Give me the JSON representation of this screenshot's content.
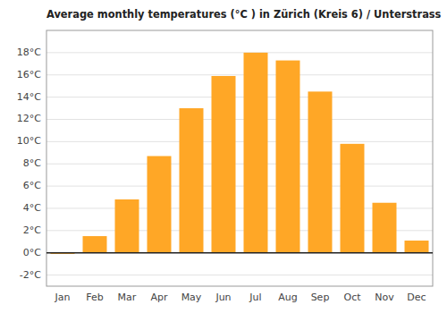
{
  "chart_data": {
    "type": "bar",
    "title": "Average monthly temperatures (°C ) in Zürich (Kreis 6) / Unterstrass",
    "categories": [
      "Jan",
      "Feb",
      "Mar",
      "Apr",
      "May",
      "Jun",
      "Jul",
      "Aug",
      "Sep",
      "Oct",
      "Nov",
      "Dec"
    ],
    "values": [
      -0.1,
      1.5,
      4.8,
      8.7,
      13.0,
      15.9,
      18.0,
      17.3,
      14.5,
      9.8,
      4.5,
      1.1
    ],
    "color": "#FFA726",
    "ylim": [
      -3,
      20
    ],
    "yticks": [
      {
        "value": -2,
        "label": "-2°C"
      },
      {
        "value": 0,
        "label": "0°C"
      },
      {
        "value": 2,
        "label": "2°C"
      },
      {
        "value": 4,
        "label": "4°C"
      },
      {
        "value": 6,
        "label": "6°C"
      },
      {
        "value": 8,
        "label": "8°C"
      },
      {
        "value": 10,
        "label": "10°C"
      },
      {
        "value": 12,
        "label": "12°C"
      },
      {
        "value": 14,
        "label": "14°C"
      },
      {
        "value": 16,
        "label": "16°C"
      },
      {
        "value": 18,
        "label": "18°C"
      }
    ],
    "grid": true
  }
}
